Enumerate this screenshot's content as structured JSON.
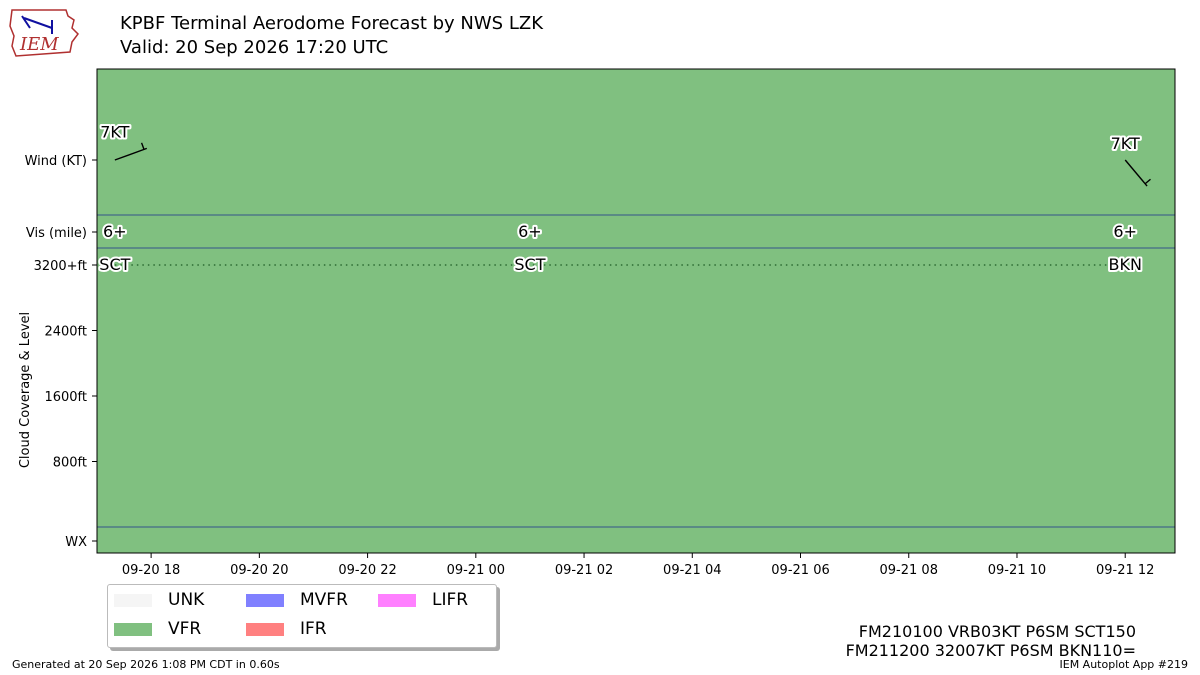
{
  "header": {
    "title": "KPBF Terminal Aerodome Forecast by NWS LZK",
    "subtitle": "Valid: 20 Sep 2026 17:20 UTC",
    "logo_text": "IEM"
  },
  "chart_data": {
    "type": "timeline",
    "x_range": [
      "2026-09-20 17:00",
      "2026-09-21 12:55"
    ],
    "x_ticks": [
      "09-20 18",
      "09-20 20",
      "09-20 22",
      "09-21 00",
      "09-21 02",
      "09-21 04",
      "09-21 06",
      "09-21 08",
      "09-21 10",
      "09-21 12"
    ],
    "x_tick_hours": [
      18,
      20,
      22,
      24,
      26,
      28,
      30,
      32,
      34,
      36
    ],
    "x_start_hour": 17.0,
    "x_end_hour": 36.92,
    "y_labels": {
      "wind": "Wind (KT)",
      "vis": "Vis (mile)",
      "cloud_axis": "Cloud Coverage & Level",
      "wx": "WX"
    },
    "cloud_ticks": [
      {
        "label": "3200+ft",
        "value": 3200
      },
      {
        "label": "2400ft",
        "value": 2400
      },
      {
        "label": "1600ft",
        "value": 1600
      },
      {
        "label": "800ft",
        "value": 800
      }
    ],
    "background_category": "VFR",
    "forecasts": [
      {
        "hour": 17.33,
        "wind_label": "7KT",
        "wind_dir": 250,
        "vis_label": "6+",
        "cloud_label": "SCT"
      },
      {
        "hour": 25.0,
        "wind_label": null,
        "wind_dir": null,
        "vis_label": "6+",
        "cloud_label": "SCT"
      },
      {
        "hour": 36.0,
        "wind_label": "7KT",
        "wind_dir": 320,
        "vis_label": "6+",
        "cloud_label": "BKN"
      }
    ],
    "legend": [
      {
        "name": "UNK",
        "color": "#f5f5f5"
      },
      {
        "name": "VFR",
        "color": "#80c080"
      },
      {
        "name": "MVFR",
        "color": "#8080ff"
      },
      {
        "name": "IFR",
        "color": "#ff8080"
      },
      {
        "name": "LIFR",
        "color": "#ff80ff"
      }
    ],
    "colors": {
      "vfr": "#80c080",
      "divider": "#34538a",
      "cloud_line": "#2c6b33"
    }
  },
  "taf_text": [
    "FM210100 VRB03KT P6SM SCT150",
    "FM211200 32007KT P6SM BKN110="
  ],
  "footer": {
    "generated": "Generated at 20 Sep 2026 1:08 PM CDT in 0.60s",
    "app": "IEM Autoplot App #219"
  }
}
